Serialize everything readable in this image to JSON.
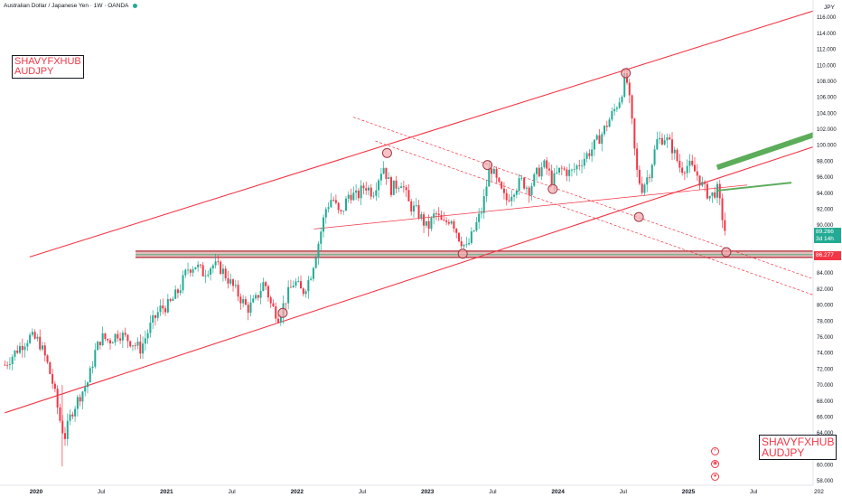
{
  "header": {
    "title": "Australian Dollar / Japanese Yen · 1W · OANDA"
  },
  "watermark": {
    "line1": "SHAVYFXHUB",
    "line2": "AUDJPY"
  },
  "price_tags": {
    "last_price": "89.266",
    "countdown": "3d 14h",
    "support_level": "86.277"
  },
  "icons": [
    "lightning-icon",
    "sphere-icon",
    "target-icon"
  ],
  "colors": {
    "up": "#22ab94",
    "down": "#f23645",
    "trendline": "#f23645",
    "projection": "#5cad5a",
    "support_band": "#c98b8b"
  },
  "chart_data": {
    "type": "candlestick",
    "axis_unit": "JPY",
    "ylim": [
      58,
      117
    ],
    "y_ticks": [
      "58.000",
      "60.000",
      "62.000",
      "64.000",
      "66.000",
      "68.000",
      "70.000",
      "72.000",
      "74.000",
      "76.000",
      "78.000",
      "80.000",
      "82.000",
      "84.000",
      "86.000",
      "88.000",
      "90.000",
      "92.000",
      "94.000",
      "96.000",
      "98.000",
      "100.000",
      "102.000",
      "104.000",
      "106.000",
      "108.000",
      "110.000",
      "112.000",
      "114.000",
      "116.000"
    ],
    "x_ticks": [
      {
        "label": "2020",
        "t": 2020.0
      },
      {
        "label": "Jul",
        "t": 2020.5
      },
      {
        "label": "2021",
        "t": 2021.0
      },
      {
        "label": "Jul",
        "t": 2021.5
      },
      {
        "label": "2022",
        "t": 2022.0
      },
      {
        "label": "Jul",
        "t": 2022.5
      },
      {
        "label": "2023",
        "t": 2023.0
      },
      {
        "label": "Jul",
        "t": 2023.5
      },
      {
        "label": "2024",
        "t": 2024.0
      },
      {
        "label": "Jul",
        "t": 2024.5
      },
      {
        "label": "2025",
        "t": 2025.0
      },
      {
        "label": "Jul",
        "t": 2025.5
      },
      {
        "label": "202",
        "t": 2026.0
      }
    ],
    "xlim": [
      2019.76,
      2026.0
    ],
    "price_path": [
      [
        2019.76,
        72.5
      ],
      [
        2019.86,
        74.5
      ],
      [
        2019.95,
        76.0
      ],
      [
        2020.02,
        75.5
      ],
      [
        2020.08,
        73.0
      ],
      [
        2020.13,
        70.0
      ],
      [
        2020.19,
        65.0
      ],
      [
        2020.22,
        63.5
      ],
      [
        2020.27,
        66.5
      ],
      [
        2020.33,
        68.5
      ],
      [
        2020.4,
        70.5
      ],
      [
        2020.45,
        74.0
      ],
      [
        2020.5,
        76.0
      ],
      [
        2020.56,
        75.5
      ],
      [
        2020.63,
        76.5
      ],
      [
        2020.72,
        75.5
      ],
      [
        2020.8,
        74.5
      ],
      [
        2020.88,
        77.5
      ],
      [
        2020.95,
        79.5
      ],
      [
        2021.02,
        80.0
      ],
      [
        2021.1,
        82.0
      ],
      [
        2021.16,
        84.5
      ],
      [
        2021.22,
        85.0
      ],
      [
        2021.28,
        84.0
      ],
      [
        2021.35,
        85.0
      ],
      [
        2021.42,
        84.5
      ],
      [
        2021.5,
        82.5
      ],
      [
        2021.56,
        81.0
      ],
      [
        2021.62,
        79.5
      ],
      [
        2021.68,
        80.5
      ],
      [
        2021.75,
        83.0
      ],
      [
        2021.8,
        80.0
      ],
      [
        2021.86,
        78.5
      ],
      [
        2021.92,
        81.0
      ],
      [
        2021.98,
        83.0
      ],
      [
        2022.04,
        81.5
      ],
      [
        2022.1,
        83.5
      ],
      [
        2022.16,
        87.5
      ],
      [
        2022.22,
        92.0
      ],
      [
        2022.27,
        93.5
      ],
      [
        2022.33,
        91.0
      ],
      [
        2022.4,
        94.0
      ],
      [
        2022.46,
        93.5
      ],
      [
        2022.52,
        95.0
      ],
      [
        2022.58,
        94.0
      ],
      [
        2022.66,
        97.5
      ],
      [
        2022.72,
        94.5
      ],
      [
        2022.8,
        95.5
      ],
      [
        2022.86,
        92.5
      ],
      [
        2022.93,
        91.5
      ],
      [
        2023.0,
        89.5
      ],
      [
        2023.06,
        91.5
      ],
      [
        2023.12,
        90.0
      ],
      [
        2023.18,
        91.0
      ],
      [
        2023.24,
        88.5
      ],
      [
        2023.3,
        87.0
      ],
      [
        2023.36,
        89.5
      ],
      [
        2023.42,
        92.0
      ],
      [
        2023.48,
        97.5
      ],
      [
        2023.54,
        95.0
      ],
      [
        2023.6,
        93.0
      ],
      [
        2023.66,
        94.5
      ],
      [
        2023.72,
        95.5
      ],
      [
        2023.78,
        94.5
      ],
      [
        2023.84,
        96.5
      ],
      [
        2023.9,
        97.5
      ],
      [
        2023.96,
        95.5
      ],
      [
        2024.02,
        97.0
      ],
      [
        2024.1,
        96.5
      ],
      [
        2024.18,
        98.0
      ],
      [
        2024.26,
        99.5
      ],
      [
        2024.34,
        101.5
      ],
      [
        2024.42,
        104.0
      ],
      [
        2024.48,
        106.0
      ],
      [
        2024.52,
        109.0
      ],
      [
        2024.56,
        104.0
      ],
      [
        2024.6,
        97.0
      ],
      [
        2024.64,
        94.5
      ],
      [
        2024.7,
        96.5
      ],
      [
        2024.76,
        100.5
      ],
      [
        2024.82,
        101.0
      ],
      [
        2024.88,
        99.5
      ],
      [
        2024.94,
        97.0
      ],
      [
        2025.0,
        97.5
      ],
      [
        2025.06,
        96.5
      ],
      [
        2025.12,
        94.5
      ],
      [
        2025.17,
        93.5
      ],
      [
        2025.22,
        94.5
      ],
      [
        2025.26,
        91.0
      ],
      [
        2025.29,
        89.266
      ]
    ],
    "support_level": 86.277,
    "annotations": [
      {
        "name": "channel-upper",
        "t1": 2019.95,
        "p1": 86.0,
        "t2": 2026.0,
        "p2": 117.0
      },
      {
        "name": "channel-lower",
        "t1": 2019.76,
        "p1": 66.5,
        "t2": 2026.0,
        "p2": 100.0
      },
      {
        "name": "dashed-upper-parallel",
        "t1": 2022.43,
        "p1": 103.5,
        "t2": 2026.0,
        "p2": 83.0
      },
      {
        "name": "dashed-down-trend",
        "t1": 2022.6,
        "p1": 100.5,
        "t2": 2026.0,
        "p2": 81.0
      }
    ],
    "pivot_circles": [
      {
        "t": 2021.89,
        "p": 79.0
      },
      {
        "t": 2022.69,
        "p": 99.0
      },
      {
        "t": 2023.27,
        "p": 86.4
      },
      {
        "t": 2023.46,
        "p": 97.5
      },
      {
        "t": 2023.96,
        "p": 94.5
      },
      {
        "t": 2024.52,
        "p": 109.0
      },
      {
        "t": 2024.62,
        "p": 91.0
      },
      {
        "t": 2025.29,
        "p": 86.6
      }
    ]
  }
}
